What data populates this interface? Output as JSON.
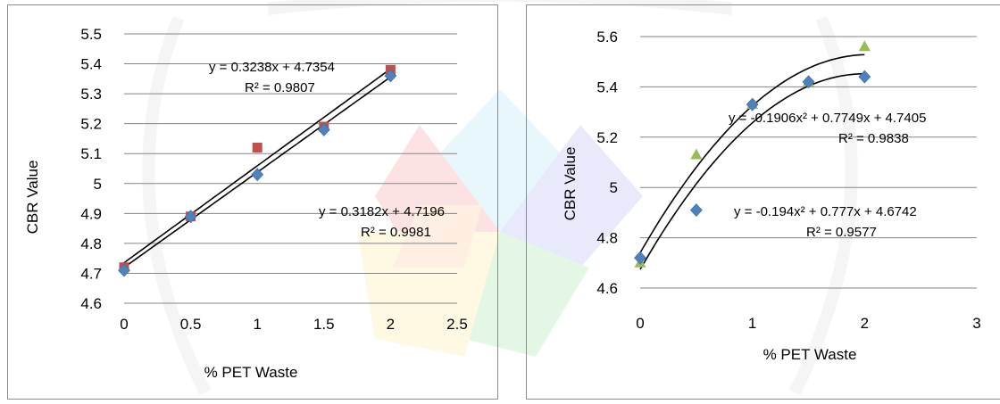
{
  "chart_data": [
    {
      "type": "scatter",
      "xlabel": "% PET Waste",
      "ylabel": "CBR Value",
      "xlim": [
        0,
        2.5
      ],
      "ylim": [
        4.6,
        5.5
      ],
      "x_ticks": [
        "0",
        "0.5",
        "1",
        "1.5",
        "2",
        "2.5"
      ],
      "y_ticks": [
        "4.6",
        "4.7",
        "4.8",
        "4.9",
        "5",
        "5.1",
        "5.2",
        "5.3",
        "5.4",
        "5.5"
      ],
      "grid": "horizontal",
      "series": [
        {
          "marker": "square",
          "color": "#c0504d",
          "points": [
            [
              0,
              4.72
            ],
            [
              0.5,
              4.89
            ],
            [
              1,
              5.12
            ],
            [
              1.5,
              5.19
            ],
            [
              2,
              5.38
            ]
          ],
          "trendline": {
            "kind": "linear",
            "slope": 0.3238,
            "intercept": 4.7354
          },
          "equation": "y = 0.3238x + 4.7354",
          "r2": "R² = 0.9807"
        },
        {
          "marker": "diamond",
          "color": "#4f81bd",
          "points": [
            [
              0,
              4.71
            ],
            [
              0.5,
              4.89
            ],
            [
              1,
              5.03
            ],
            [
              1.5,
              5.18
            ],
            [
              2,
              5.36
            ]
          ],
          "trendline": {
            "kind": "linear",
            "slope": 0.3182,
            "intercept": 4.7196
          },
          "equation": "y = 0.3182x + 4.7196",
          "r2": "R² = 0.9981"
        }
      ]
    },
    {
      "type": "scatter",
      "xlabel": "% PET Waste",
      "ylabel": "CBR Value",
      "xlim": [
        0,
        3
      ],
      "ylim": [
        4.6,
        5.6
      ],
      "x_ticks": [
        "0",
        "1",
        "2",
        "3"
      ],
      "y_ticks": [
        "4.6",
        "4.8",
        "5",
        "5.2",
        "5.4",
        "5.6"
      ],
      "grid": "horizontal",
      "series": [
        {
          "marker": "triangle",
          "color": "#9bbb59",
          "points": [
            [
              0,
              4.7
            ],
            [
              0.5,
              5.13
            ],
            [
              1,
              5.33
            ],
            [
              1.5,
              5.42
            ],
            [
              2,
              5.56
            ]
          ],
          "trendline": {
            "kind": "poly2",
            "a": -0.1906,
            "b": 0.7749,
            "c": 4.7405
          },
          "equation": "y = -0.1906x² + 0.7749x + 4.7405",
          "r2": "R² = 0.9838"
        },
        {
          "marker": "diamond",
          "color": "#4f81bd",
          "points": [
            [
              0,
              4.72
            ],
            [
              0.5,
              4.91
            ],
            [
              1,
              5.33
            ],
            [
              1.5,
              5.42
            ],
            [
              2,
              5.44
            ]
          ],
          "trendline": {
            "kind": "poly2",
            "a": -0.194,
            "b": 0.777,
            "c": 4.6742
          },
          "equation": "y = -0.194x² + 0.777x + 4.6742",
          "r2": "R² = 0.9577"
        }
      ]
    }
  ]
}
